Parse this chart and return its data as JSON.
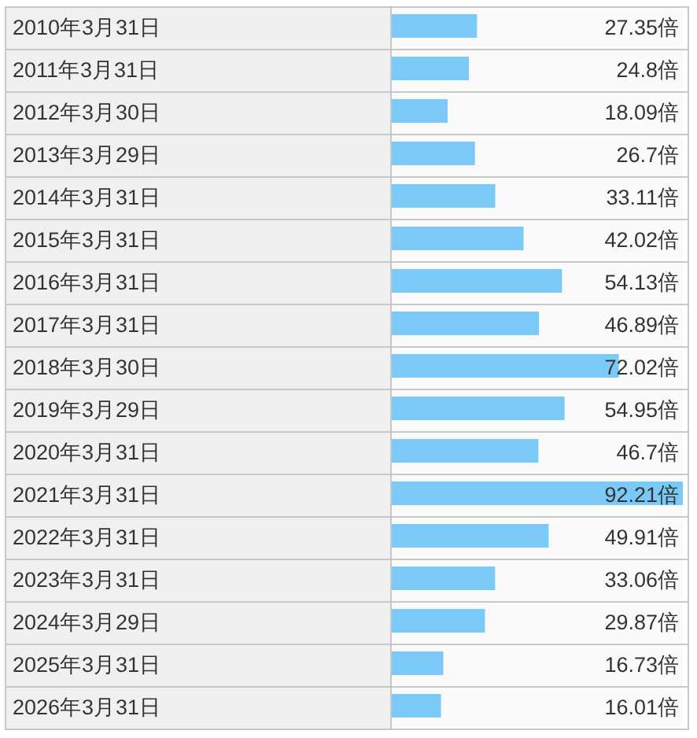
{
  "chart_data": {
    "type": "bar",
    "orientation": "horizontal",
    "color": "#7ac9f7",
    "categories": [
      "2010年3月31日",
      "2011年3月31日",
      "2012年3月30日",
      "2013年3月29日",
      "2014年3月31日",
      "2015年3月31日",
      "2016年3月31日",
      "2017年3月31日",
      "2018年3月30日",
      "2019年3月29日",
      "2020年3月31日",
      "2021年3月31日",
      "2022年3月31日",
      "2023年3月31日",
      "2024年3月29日",
      "2025年3月31日",
      "2026年3月31日"
    ],
    "values": [
      27.35,
      24.8,
      18.09,
      26.7,
      33.11,
      42.02,
      54.13,
      46.89,
      72.02,
      54.95,
      46.7,
      92.21,
      49.91,
      33.06,
      29.87,
      16.73,
      16.01
    ],
    "value_labels": [
      "27.35倍",
      "24.8倍",
      "18.09倍",
      "26.7倍",
      "33.11倍",
      "42.02倍",
      "54.13倍",
      "46.89倍",
      "72.02倍",
      "54.95倍",
      "46.7倍",
      "92.21倍",
      "49.91倍",
      "33.06倍",
      "29.87倍",
      "16.73倍",
      "16.01倍"
    ]
  }
}
